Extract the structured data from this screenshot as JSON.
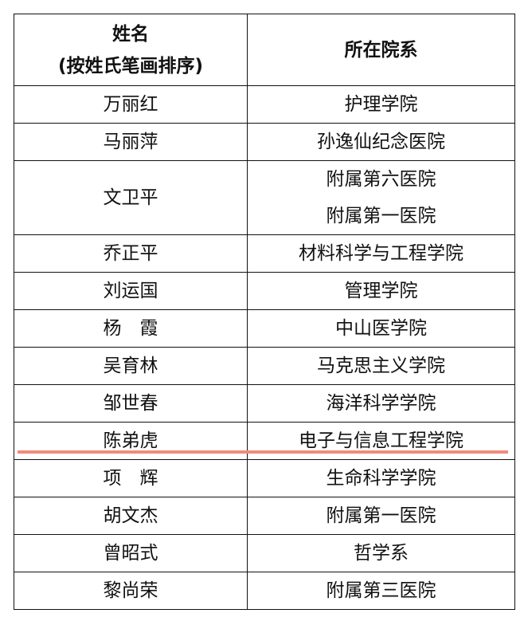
{
  "header": {
    "name_line1": "姓名",
    "name_line2": "(按姓氏笔画排序)",
    "dept": "所在院系"
  },
  "rows": [
    {
      "name": "万丽红",
      "depts": [
        "护理学院"
      ]
    },
    {
      "name": "马丽萍",
      "depts": [
        "孙逸仙纪念医院"
      ]
    },
    {
      "name": "文卫平",
      "depts": [
        "附属第六医院",
        "附属第一医院"
      ]
    },
    {
      "name": "乔正平",
      "depts": [
        "材料科学与工程学院"
      ]
    },
    {
      "name": "刘运国",
      "depts": [
        "管理学院"
      ]
    },
    {
      "name": "杨　霞",
      "depts": [
        "中山医学院"
      ]
    },
    {
      "name": "吴育林",
      "depts": [
        "马克思主义学院"
      ]
    },
    {
      "name": "邹世春",
      "depts": [
        "海洋科学学院"
      ]
    },
    {
      "name": "陈弟虎",
      "depts": [
        "电子与信息工程学院"
      ]
    },
    {
      "name": "项　辉",
      "depts": [
        "生命科学学院"
      ]
    },
    {
      "name": "胡文杰",
      "depts": [
        "附属第一医院"
      ]
    },
    {
      "name": "曾昭式",
      "depts": [
        "哲学系"
      ]
    },
    {
      "name": "黎尚荣",
      "depts": [
        "附属第三医院"
      ]
    }
  ],
  "colors": {
    "highlight_line": "#f28b7c"
  }
}
